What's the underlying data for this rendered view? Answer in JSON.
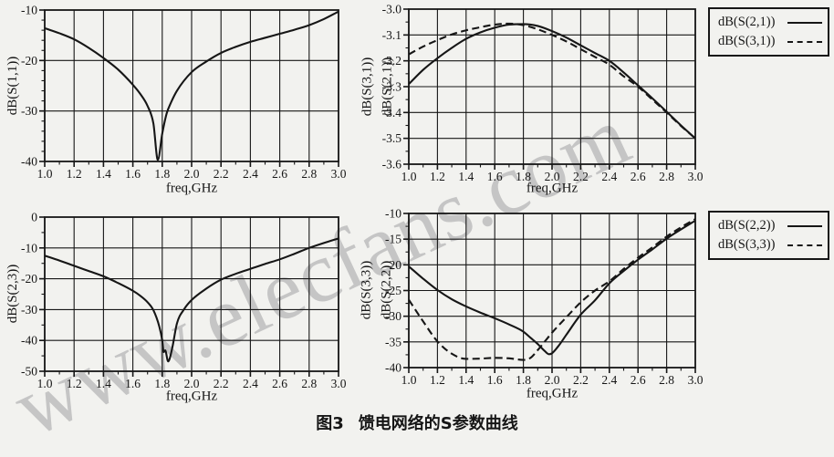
{
  "page": {
    "background": "#f2f2ef",
    "ink": "#161616"
  },
  "watermark": {
    "text": "www.elecfans.com",
    "color": "#c5c5c5",
    "angle_deg": -25
  },
  "caption": {
    "label": "图3",
    "text": "馈电网络的S参数曲线"
  },
  "chart_data": [
    {
      "type": "line",
      "title": "",
      "xlabel": "freq,GHz",
      "ylabel_lines": [
        "dB(S(1,1))"
      ],
      "xlim": [
        1.0,
        3.0
      ],
      "ylim": [
        -40,
        -10
      ],
      "xticks": [
        1.0,
        1.2,
        1.4,
        1.6,
        1.8,
        2.0,
        2.2,
        2.4,
        2.6,
        2.8,
        3.0
      ],
      "xtick_labels": [
        "1.0",
        "1.2",
        "1.4",
        "1.6",
        "1.8",
        "2.0",
        "2.2",
        "2.4",
        "2.6",
        "2.8",
        "3.0"
      ],
      "yticks": [
        -10,
        -20,
        -30,
        -40
      ],
      "ytick_labels": [
        "-10",
        "-20",
        "-30",
        "-40"
      ],
      "x_minor_step": 0.1,
      "y_minor_step": 2,
      "grid": true,
      "legend": null,
      "series": [
        {
          "name": "dB(S(1,1))",
          "style": "solid",
          "x": [
            1.0,
            1.1,
            1.2,
            1.3,
            1.4,
            1.5,
            1.6,
            1.65,
            1.7,
            1.74,
            1.77,
            1.8,
            1.83,
            1.86,
            1.9,
            2.0,
            2.1,
            2.2,
            2.3,
            2.4,
            2.5,
            2.6,
            2.7,
            2.8,
            2.9,
            3.0
          ],
          "y": [
            -13.6,
            -14.6,
            -15.8,
            -17.5,
            -19.5,
            -21.8,
            -24.8,
            -26.6,
            -29.0,
            -32.5,
            -39.7,
            -34.5,
            -30.5,
            -28.3,
            -26.0,
            -22.3,
            -20.2,
            -18.5,
            -17.3,
            -16.3,
            -15.5,
            -14.7,
            -13.9,
            -13.0,
            -11.8,
            -10.3
          ]
        }
      ]
    },
    {
      "type": "line",
      "title": "",
      "xlabel": "freq,GHz",
      "ylabel_lines": [
        "dB(S(3,1))",
        "dB(S(2,1))"
      ],
      "xlim": [
        1.0,
        3.0
      ],
      "ylim": [
        -3.6,
        -3.0
      ],
      "xticks": [
        1.0,
        1.2,
        1.4,
        1.6,
        1.8,
        2.0,
        2.2,
        2.4,
        2.6,
        2.8,
        3.0
      ],
      "xtick_labels": [
        "1.0",
        "1.2",
        "1.4",
        "1.6",
        "1.8",
        "2.0",
        "2.2",
        "2.4",
        "2.6",
        "2.8",
        "3.0"
      ],
      "yticks": [
        -3.0,
        -3.1,
        -3.2,
        -3.3,
        -3.4,
        -3.5,
        -3.6
      ],
      "ytick_labels": [
        "-3.0",
        "-3.1",
        "-3.2",
        "-3.3",
        "-3.4",
        "-3.5",
        "-3.6"
      ],
      "x_minor_step": 0.1,
      "y_minor_step": 0.05,
      "grid": true,
      "legend": {
        "position": "outside-right",
        "entries": [
          {
            "label": "dB(S(2,1))",
            "style": "solid"
          },
          {
            "label": "dB(S(3,1))",
            "style": "dashed"
          }
        ]
      },
      "series": [
        {
          "name": "dB(S(2,1))",
          "style": "solid",
          "x": [
            1.0,
            1.1,
            1.2,
            1.3,
            1.4,
            1.5,
            1.6,
            1.7,
            1.8,
            1.9,
            2.0,
            2.1,
            2.2,
            2.3,
            2.4,
            2.5,
            2.6,
            2.7,
            2.8,
            2.9,
            3.0
          ],
          "y": [
            -3.29,
            -3.235,
            -3.19,
            -3.15,
            -3.115,
            -3.09,
            -3.072,
            -3.06,
            -3.058,
            -3.065,
            -3.085,
            -3.11,
            -3.14,
            -3.17,
            -3.2,
            -3.245,
            -3.295,
            -3.345,
            -3.397,
            -3.45,
            -3.5
          ]
        },
        {
          "name": "dB(S(3,1))",
          "style": "dashed",
          "x": [
            1.0,
            1.1,
            1.2,
            1.3,
            1.4,
            1.5,
            1.6,
            1.7,
            1.8,
            1.9,
            2.0,
            2.1,
            2.2,
            2.3,
            2.4,
            2.5,
            2.6,
            2.7,
            2.8,
            2.9,
            3.0
          ],
          "y": [
            -3.175,
            -3.145,
            -3.12,
            -3.098,
            -3.082,
            -3.07,
            -3.06,
            -3.056,
            -3.062,
            -3.078,
            -3.1,
            -3.125,
            -3.155,
            -3.185,
            -3.215,
            -3.26,
            -3.3,
            -3.35,
            -3.4,
            -3.452,
            -3.5
          ]
        }
      ]
    },
    {
      "type": "line",
      "title": "",
      "xlabel": "freq,GHz",
      "ylabel_lines": [
        "dB(S(2,3))"
      ],
      "xlim": [
        1.0,
        3.0
      ],
      "ylim": [
        -50,
        0
      ],
      "xticks": [
        1.0,
        1.2,
        1.4,
        1.6,
        1.8,
        2.0,
        2.2,
        2.4,
        2.6,
        2.8,
        3.0
      ],
      "xtick_labels": [
        "1.0",
        "1.2",
        "1.4",
        "1.6",
        "1.8",
        "2.0",
        "2.2",
        "2.4",
        "2.6",
        "2.8",
        "3.0"
      ],
      "yticks": [
        0,
        -10,
        -20,
        -30,
        -40,
        -50
      ],
      "ytick_labels": [
        "0",
        "-10",
        "-20",
        "-30",
        "-40",
        "-50"
      ],
      "x_minor_step": 0.1,
      "y_minor_step": 5,
      "grid": true,
      "legend": null,
      "series": [
        {
          "name": "dB(S(2,3))",
          "style": "solid",
          "x": [
            1.0,
            1.1,
            1.2,
            1.3,
            1.4,
            1.5,
            1.6,
            1.65,
            1.7,
            1.74,
            1.78,
            1.8,
            1.81,
            1.82,
            1.84,
            1.85,
            1.87,
            1.9,
            1.95,
            2.0,
            2.1,
            2.2,
            2.3,
            2.4,
            2.5,
            2.6,
            2.7,
            2.8,
            2.9,
            3.0
          ],
          "y": [
            -12.5,
            -14.1,
            -15.8,
            -17.5,
            -19.2,
            -21.4,
            -23.9,
            -25.5,
            -27.6,
            -30.2,
            -35.5,
            -40.0,
            -43.8,
            -43.2,
            -46.8,
            -46.0,
            -42.0,
            -34.5,
            -29.8,
            -26.9,
            -23.2,
            -20.3,
            -18.4,
            -16.8,
            -15.2,
            -13.7,
            -11.9,
            -10.0,
            -8.4,
            -6.9
          ]
        }
      ]
    },
    {
      "type": "line",
      "title": "",
      "xlabel": "freq,GHz",
      "ylabel_lines": [
        "dB(S(3,3))",
        "dB(S(2,2))"
      ],
      "xlim": [
        1.0,
        3.0
      ],
      "ylim": [
        -40,
        -10
      ],
      "xticks": [
        1.0,
        1.2,
        1.4,
        1.6,
        1.8,
        2.0,
        2.2,
        2.4,
        2.6,
        2.8,
        3.0
      ],
      "xtick_labels": [
        "1.0",
        "1.2",
        "1.4",
        "1.6",
        "1.8",
        "2.0",
        "2.2",
        "2.4",
        "2.6",
        "2.8",
        "3.0"
      ],
      "yticks": [
        -10,
        -15,
        -20,
        -25,
        -30,
        -35,
        -40
      ],
      "ytick_labels": [
        "-10",
        "-15",
        "-20",
        "-25",
        "-30",
        "-35",
        "-40"
      ],
      "x_minor_step": 0.1,
      "y_minor_step": 2.5,
      "grid": true,
      "legend": {
        "position": "outside-right",
        "entries": [
          {
            "label": "dB(S(2,2))",
            "style": "solid"
          },
          {
            "label": "dB(S(3,3))",
            "style": "dashed"
          }
        ]
      },
      "series": [
        {
          "name": "dB(S(2,2))",
          "style": "solid",
          "x": [
            1.0,
            1.1,
            1.2,
            1.3,
            1.4,
            1.5,
            1.6,
            1.7,
            1.8,
            1.85,
            1.9,
            1.95,
            1.98,
            2.0,
            2.05,
            2.1,
            2.2,
            2.3,
            2.4,
            2.5,
            2.6,
            2.7,
            2.8,
            2.9,
            3.0
          ],
          "y": [
            -20.3,
            -22.7,
            -24.9,
            -26.7,
            -28.1,
            -29.3,
            -30.4,
            -31.6,
            -33.0,
            -34.2,
            -35.4,
            -36.8,
            -37.4,
            -37.2,
            -35.6,
            -33.6,
            -29.7,
            -26.9,
            -23.6,
            -21.2,
            -19.0,
            -17.0,
            -14.9,
            -13.1,
            -11.4
          ]
        },
        {
          "name": "dB(S(3,3))",
          "style": "dashed",
          "x": [
            1.0,
            1.1,
            1.2,
            1.3,
            1.4,
            1.5,
            1.6,
            1.7,
            1.8,
            1.85,
            1.9,
            1.95,
            2.0,
            2.1,
            2.2,
            2.3,
            2.4,
            2.5,
            2.6,
            2.7,
            2.8,
            2.9,
            3.0
          ],
          "y": [
            -26.8,
            -31.0,
            -34.9,
            -37.3,
            -38.3,
            -38.25,
            -38.1,
            -38.2,
            -38.5,
            -38.1,
            -36.6,
            -34.9,
            -33.2,
            -30.2,
            -27.3,
            -25.0,
            -23.2,
            -20.8,
            -18.6,
            -16.6,
            -14.5,
            -12.7,
            -11.1
          ]
        }
      ]
    }
  ]
}
